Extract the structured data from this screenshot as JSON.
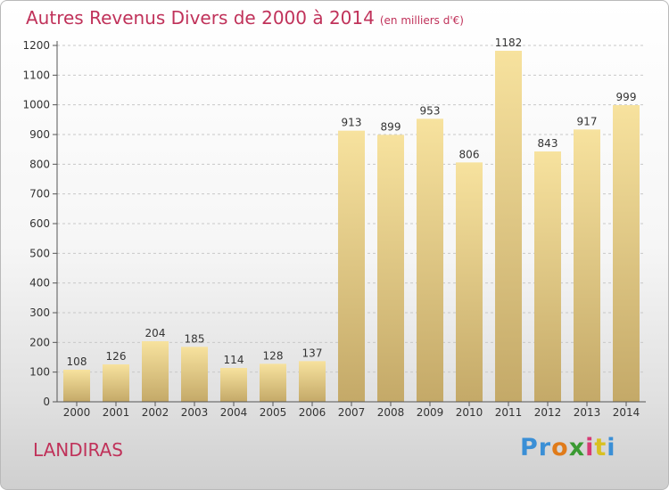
{
  "title": {
    "main": "Autres Revenus Divers de 2000 à 2014",
    "sub": "(en milliers d'€)"
  },
  "footer": {
    "commune": "LANDIRAS"
  },
  "logo": {
    "letters": [
      "P",
      "r",
      "o",
      "x",
      "i",
      "t",
      "i"
    ],
    "colors": [
      "#3a8fd6",
      "#3a8fd6",
      "#e07b1a",
      "#3a9a32",
      "#d63a74",
      "#d9c021",
      "#3a8fd6"
    ]
  },
  "colors": {
    "bar_light": "#f7e29e",
    "bar_dark": "#c4a968",
    "axis": "#555555",
    "grid": "#c8c8c8",
    "accent": "#c0325a"
  },
  "chart_data": {
    "type": "bar",
    "categories": [
      "2000",
      "2001",
      "2002",
      "2003",
      "2004",
      "2005",
      "2006",
      "2007",
      "2008",
      "2009",
      "2010",
      "2011",
      "2012",
      "2013",
      "2014"
    ],
    "values": [
      108,
      126,
      204,
      185,
      114,
      128,
      137,
      913,
      899,
      953,
      806,
      1182,
      843,
      917,
      999
    ],
    "data_labels": [
      "108",
      "126",
      "204",
      "185",
      "114",
      "128",
      "137",
      "913",
      "899",
      "953",
      "806",
      "1182",
      "843",
      "917",
      "999"
    ],
    "title": "Autres Revenus Divers de 2000 à 2014",
    "ylim": [
      0,
      1200
    ],
    "yticks": [
      0,
      100,
      200,
      300,
      400,
      500,
      600,
      700,
      800,
      900,
      1000,
      1100,
      1200
    ],
    "grid": true,
    "legend": "none"
  }
}
